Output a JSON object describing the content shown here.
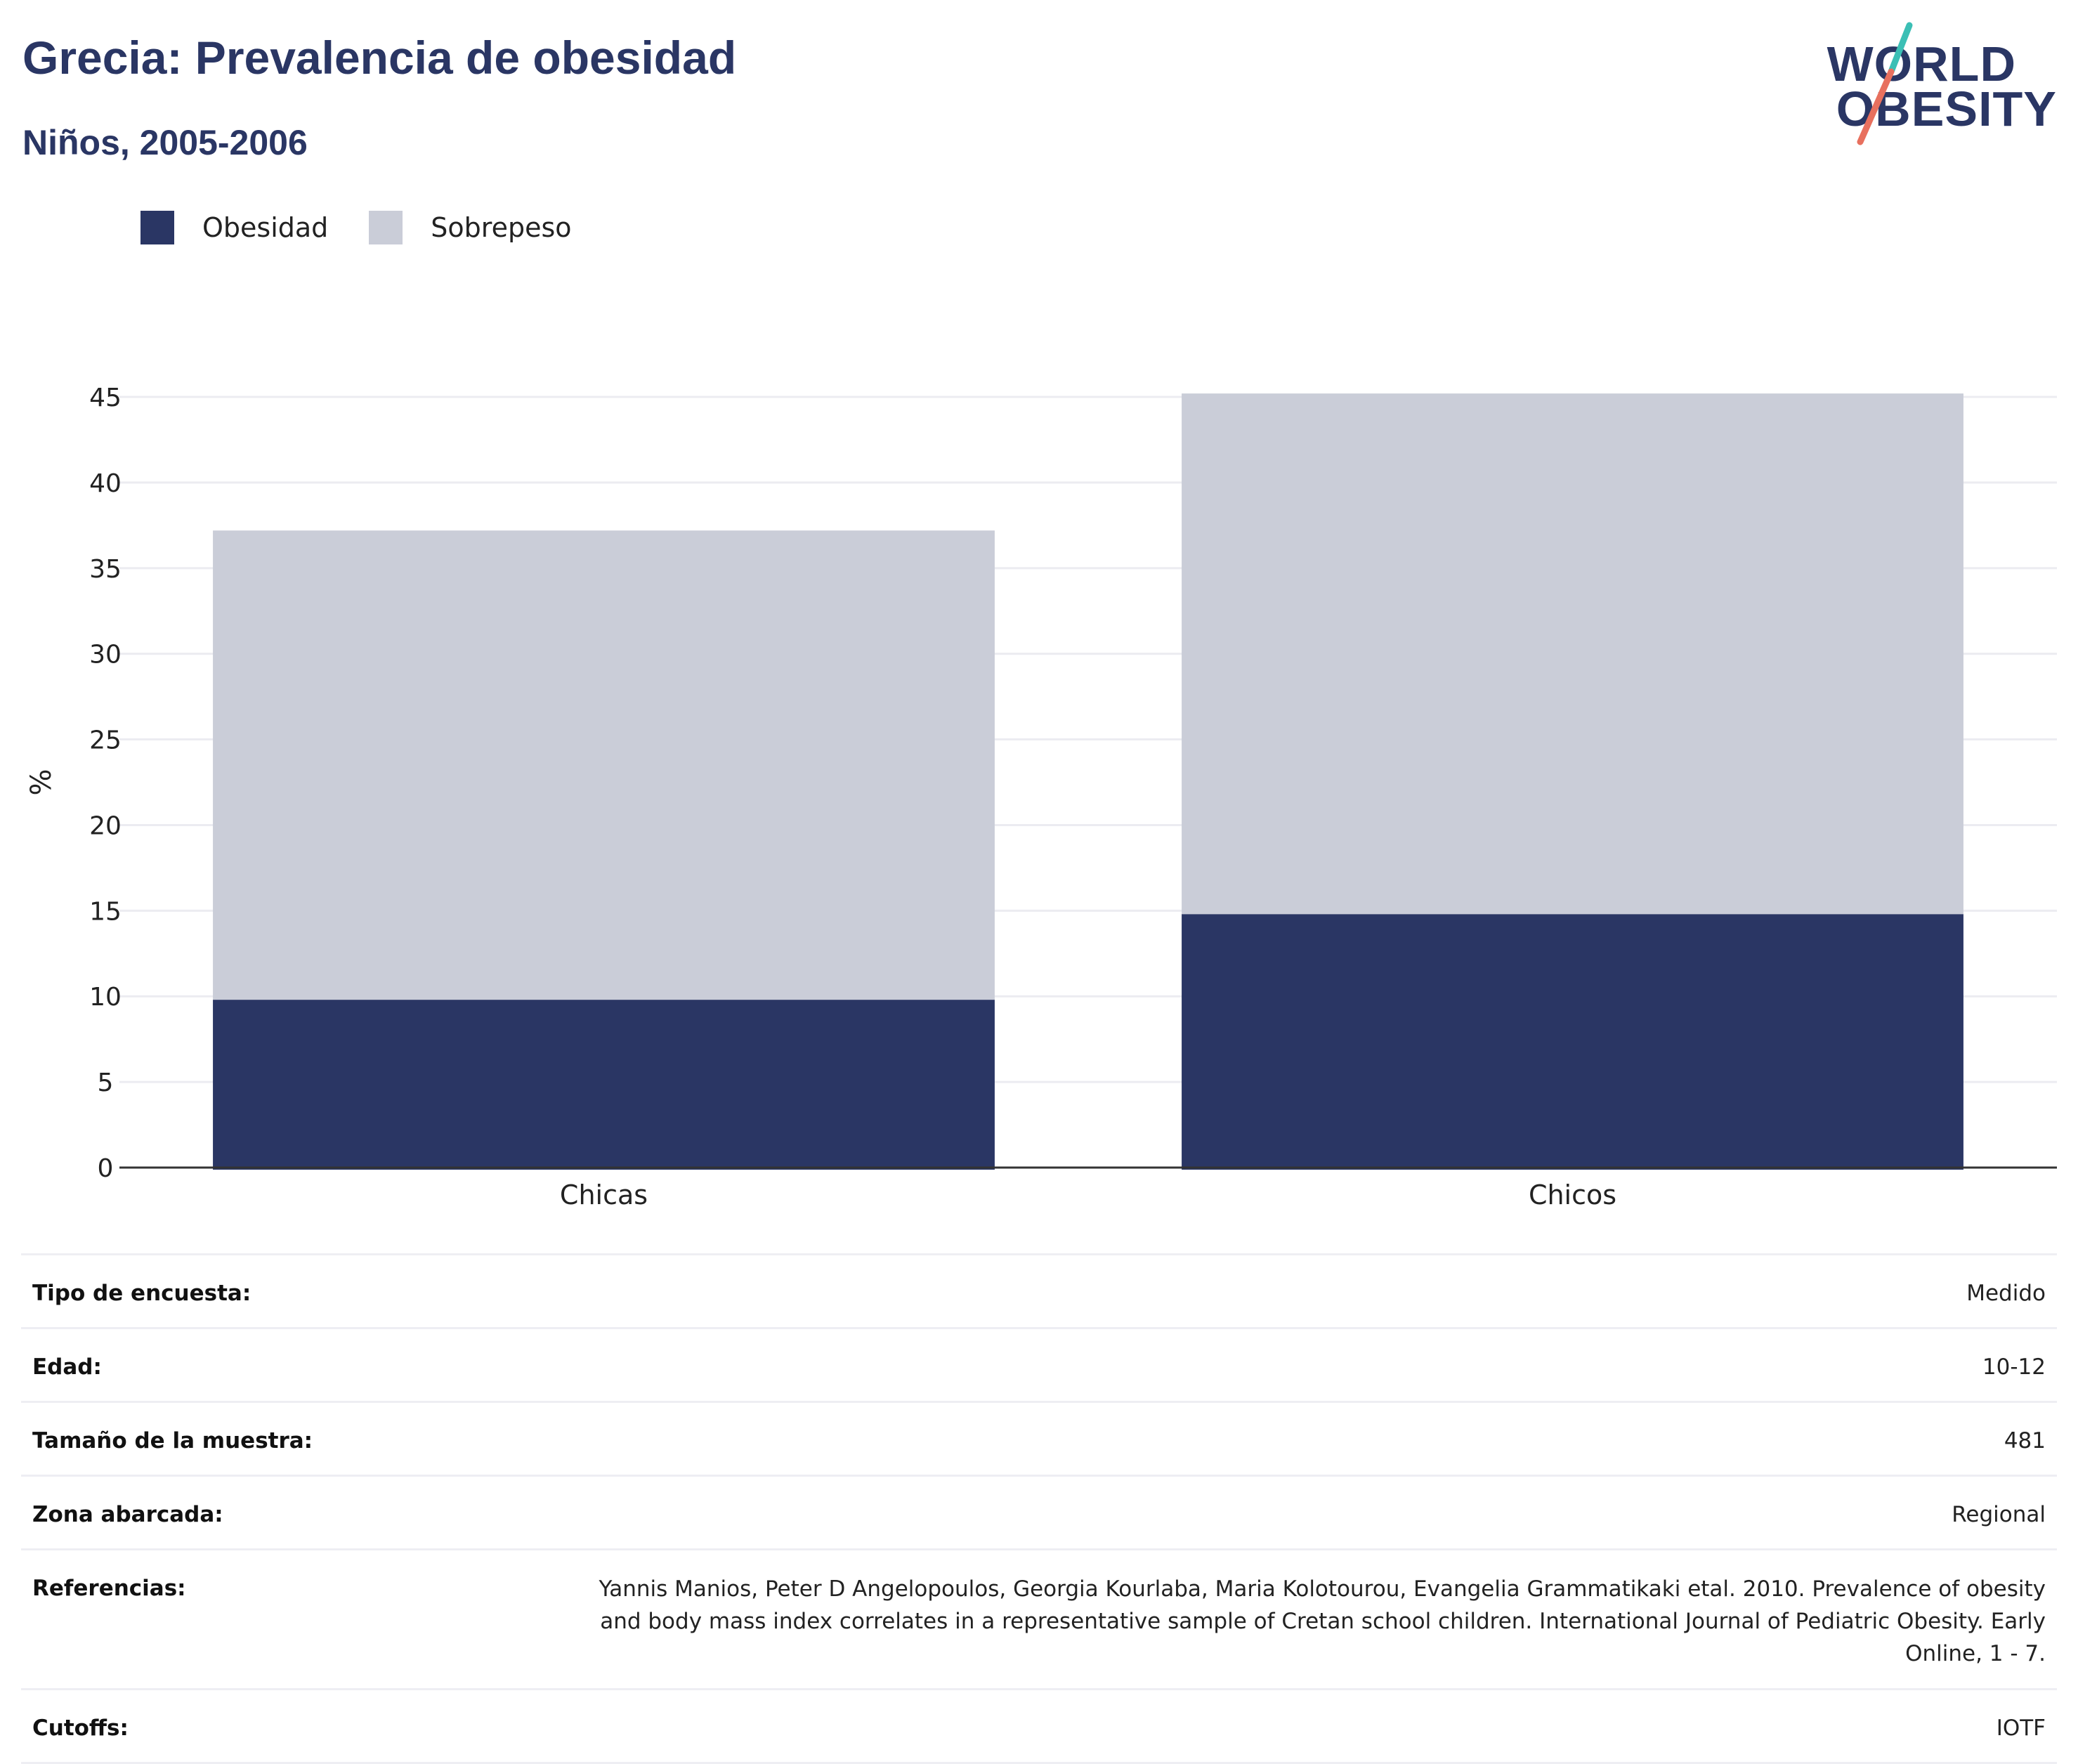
{
  "header": {
    "title": "Grecia: Prevalencia de obesidad",
    "subtitle": "Niños, 2005-2006"
  },
  "logo": {
    "line1": "WORLD",
    "line2": "OBESITY",
    "slash_colors": [
      "#3bbfb5",
      "#e8705e"
    ]
  },
  "colors": {
    "obesidad": "#2a3664",
    "sobrepeso": "#cacdd8",
    "grid": "#ececf1",
    "axis": "#333333"
  },
  "chart_data": {
    "type": "bar",
    "stacked": true,
    "categories": [
      "Chicas",
      "Chicos"
    ],
    "series": [
      {
        "name": "Obesidad",
        "values": [
          9.8,
          14.8
        ]
      },
      {
        "name": "Sobrepeso",
        "values": [
          27.4,
          30.4
        ]
      }
    ],
    "ylabel": "%",
    "ylim": [
      0,
      45
    ],
    "yticks": [
      0,
      5,
      10,
      15,
      20,
      25,
      30,
      35,
      40,
      45
    ],
    "grid": true,
    "legend_position": "top-left"
  },
  "info": [
    {
      "label": "Tipo de encuesta:",
      "value": "Medido"
    },
    {
      "label": "Edad:",
      "value": "10-12"
    },
    {
      "label": "Tamaño de la muestra:",
      "value": "481"
    },
    {
      "label": "Zona abarcada:",
      "value": "Regional"
    },
    {
      "label": "Referencias:",
      "value": "Yannis Manios, Peter D Angelopoulos, Georgia Kourlaba, Maria Kolotourou, Evangelia Grammatikaki etal. 2010. Prevalence of obesity and body mass index correlates in a representative sample of Cretan school children. International Journal of Pediatric Obesity. Early Online, 1 - 7."
    },
    {
      "label": "Cutoffs:",
      "value": "IOTF"
    }
  ]
}
